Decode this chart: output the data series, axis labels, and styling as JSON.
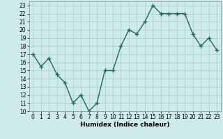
{
  "x": [
    0,
    1,
    2,
    3,
    4,
    5,
    6,
    7,
    8,
    9,
    10,
    11,
    12,
    13,
    14,
    15,
    16,
    17,
    18,
    19,
    20,
    21,
    22,
    23
  ],
  "y": [
    17,
    15.5,
    16.5,
    14.5,
    13.5,
    11,
    12,
    10,
    11,
    15,
    15,
    18,
    20,
    19.5,
    21,
    23,
    22,
    22,
    22,
    22,
    19.5,
    18,
    19,
    17.5
  ],
  "line_color": "#1a6b5a",
  "marker": "+",
  "marker_size": 4,
  "linewidth": 1.0,
  "bg_color": "#ceeaea",
  "grid_color": "#b0d0d0",
  "xlabel": "Humidex (Indice chaleur)",
  "xlim": [
    -0.5,
    23.5
  ],
  "ylim": [
    10,
    23.5
  ],
  "yticks": [
    10,
    11,
    12,
    13,
    14,
    15,
    16,
    17,
    18,
    19,
    20,
    21,
    22,
    23
  ],
  "xticks": [
    0,
    1,
    2,
    3,
    4,
    5,
    6,
    7,
    8,
    9,
    10,
    11,
    12,
    13,
    14,
    15,
    16,
    17,
    18,
    19,
    20,
    21,
    22,
    23
  ],
  "label_fontsize": 6.5,
  "tick_fontsize": 5.5
}
